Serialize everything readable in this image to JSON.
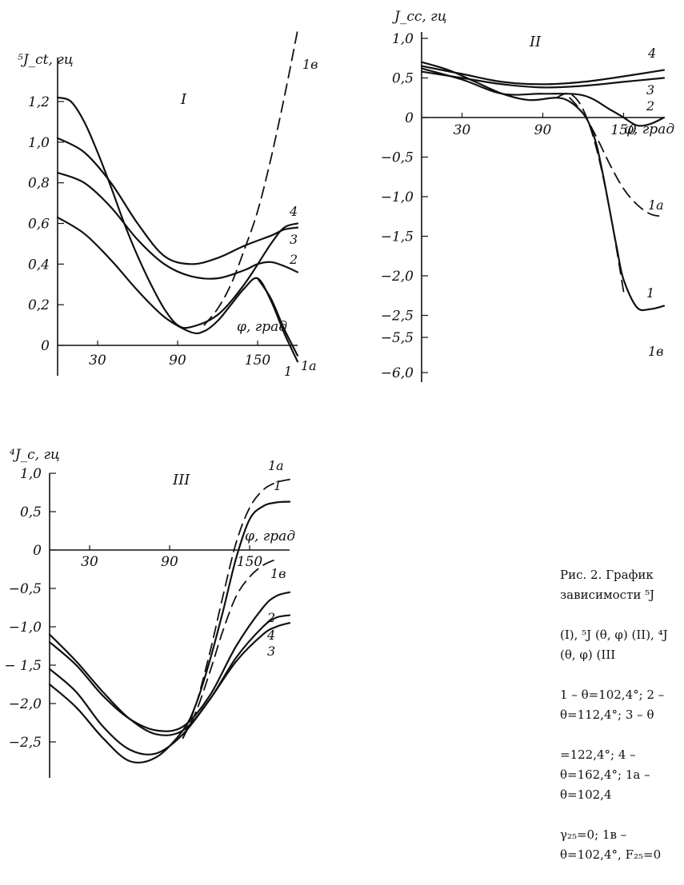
{
  "caption": {
    "lines": [
      "Рис. 2. График зависимости ⁵J",
      "(I), ⁵J (θ, φ) (II), ⁴J (θ, φ) (III",
      "1 – θ=102,4°; 2 – θ=112,4°; 3 – θ",
      "=122,4°; 4 – θ=162,4°; 1a – θ=102,4",
      "γ₂₅=0; 1в – θ=102,4°, F₂₅=0"
    ]
  },
  "chart_data": [
    {
      "type": "line",
      "panel": "I",
      "ylabel": "⁵J_ct, гц",
      "xlabel": "φ, град",
      "xticks": [
        30,
        90,
        150
      ],
      "yticks": [
        0,
        0.2,
        0.4,
        0.6,
        0.8,
        1.0,
        1.2
      ],
      "ytick_labels": [
        "0",
        "0,2",
        "0,4",
        "0,6",
        "0,8",
        "1,0",
        "1,2"
      ],
      "xlim": [
        0,
        180
      ],
      "ylim": [
        -0.05,
        1.45
      ],
      "series": [
        {
          "name": "1",
          "style": "solid",
          "x": [
            0,
            20,
            40,
            60,
            80,
            100,
            110,
            120,
            130,
            140,
            150,
            160,
            170,
            180
          ],
          "y": [
            0.63,
            0.55,
            0.42,
            0.27,
            0.14,
            0.065,
            0.07,
            0.12,
            0.2,
            0.28,
            0.33,
            0.22,
            0.06,
            -0.08
          ]
        },
        {
          "name": "1a",
          "style": "solid",
          "x": [
            150,
            160,
            170,
            180
          ],
          "y": [
            0.33,
            0.23,
            0.08,
            -0.05
          ]
        },
        {
          "name": "1в",
          "style": "dashed",
          "x": [
            110,
            120,
            130,
            140,
            150,
            160,
            170,
            180
          ],
          "y": [
            0.1,
            0.18,
            0.3,
            0.47,
            0.66,
            0.92,
            1.22,
            1.55
          ]
        },
        {
          "name": "2",
          "style": "solid",
          "x": [
            0,
            20,
            40,
            60,
            80,
            100,
            120,
            140,
            150,
            160,
            170,
            180
          ],
          "y": [
            0.85,
            0.8,
            0.68,
            0.52,
            0.4,
            0.34,
            0.33,
            0.37,
            0.4,
            0.41,
            0.39,
            0.36
          ]
        },
        {
          "name": "3",
          "style": "solid",
          "x": [
            0,
            20,
            40,
            60,
            80,
            100,
            120,
            140,
            160,
            170,
            180
          ],
          "y": [
            1.02,
            0.95,
            0.8,
            0.6,
            0.44,
            0.4,
            0.43,
            0.49,
            0.54,
            0.57,
            0.58
          ]
        },
        {
          "name": "4",
          "style": "solid",
          "x": [
            0,
            10,
            20,
            30,
            40,
            50,
            60,
            70,
            80,
            90,
            100,
            120,
            140,
            160,
            170,
            180
          ],
          "y": [
            1.22,
            1.2,
            1.1,
            0.95,
            0.78,
            0.6,
            0.44,
            0.3,
            0.18,
            0.1,
            0.09,
            0.15,
            0.3,
            0.5,
            0.58,
            0.6
          ]
        }
      ],
      "labels": {
        "1": "1",
        "1a": "1a",
        "1в": "1в",
        "2": "2",
        "3": "3",
        "4": "4"
      }
    },
    {
      "type": "line",
      "panel": "II",
      "ylabel": "J_cc, гц",
      "xlabel": "φ, град",
      "xticks": [
        30,
        90,
        150
      ],
      "yticks": [
        1.0,
        0.5,
        0,
        -0.5,
        -1.0,
        -1.5,
        -2.0,
        -2.5,
        -5.5,
        -6.0
      ],
      "ytick_labels": [
        "1,0",
        "0,5",
        "0",
        "−0,5",
        "−1,0",
        "−1,5",
        "−2,0",
        "−2,5",
        "−5,5",
        "−6,0"
      ],
      "xlim": [
        0,
        180
      ],
      "series": [
        {
          "name": "1",
          "style": "solid",
          "x": [
            0,
            20,
            40,
            60,
            80,
            100,
            110,
            120,
            125,
            130,
            135,
            140,
            145,
            150,
            160,
            170,
            180
          ],
          "y": [
            0.7,
            0.6,
            0.45,
            0.3,
            0.22,
            0.25,
            0.2,
            0.05,
            -0.1,
            -0.35,
            -0.75,
            -1.2,
            -1.65,
            -2.05,
            -2.4,
            -2.42,
            -2.38
          ]
        },
        {
          "name": "1a",
          "style": "dashed",
          "x": [
            110,
            120,
            130,
            140,
            150,
            160,
            170,
            180
          ],
          "y": [
            0.25,
            0.05,
            -0.25,
            -0.6,
            -0.9,
            -1.1,
            -1.22,
            -1.25
          ]
        },
        {
          "name": "1в",
          "style": "dashed",
          "x": [
            100,
            110,
            120,
            130,
            140,
            150
          ],
          "y": [
            0.25,
            0.3,
            0.1,
            -0.4,
            -1.2,
            -2.2
          ]
        },
        {
          "name": "2",
          "style": "solid",
          "x": [
            0,
            30,
            60,
            90,
            120,
            140,
            150,
            160,
            170,
            180
          ],
          "y": [
            0.62,
            0.48,
            0.3,
            0.3,
            0.28,
            0.1,
            0.0,
            -0.1,
            -0.08,
            0.0
          ]
        },
        {
          "name": "3",
          "style": "solid",
          "x": [
            0,
            30,
            60,
            90,
            120,
            150,
            180
          ],
          "y": [
            0.58,
            0.5,
            0.42,
            0.38,
            0.4,
            0.45,
            0.5
          ]
        },
        {
          "name": "4",
          "style": "solid",
          "x": [
            0,
            30,
            60,
            90,
            120,
            150,
            180
          ],
          "y": [
            0.65,
            0.55,
            0.45,
            0.42,
            0.45,
            0.52,
            0.6
          ]
        }
      ],
      "labels": {
        "1": "1",
        "1a": "1a",
        "1в": "1в",
        "2": "2",
        "3": "3",
        "4": "4"
      }
    },
    {
      "type": "line",
      "panel": "III",
      "ylabel": "⁴J_c, гц",
      "xlabel": "φ, град",
      "xticks": [
        30,
        90,
        150
      ],
      "yticks": [
        1.0,
        0.5,
        0,
        -0.5,
        -1.0,
        -1.5,
        -2.0,
        -2.5
      ],
      "ytick_labels": [
        "1,0",
        "0,5",
        "0",
        "−0,5",
        "−1,0",
        "− 1,5",
        "−2,0",
        "−2,5"
      ],
      "xlim": [
        0,
        180
      ],
      "ylim": [
        -2.8,
        1.1
      ],
      "series": [
        {
          "name": "1",
          "style": "solid",
          "x": [
            0,
            20,
            40,
            60,
            80,
            100,
            110,
            120,
            130,
            140,
            150,
            160,
            170,
            180
          ],
          "y": [
            -1.75,
            -2.05,
            -2.45,
            -2.75,
            -2.7,
            -2.35,
            -2.0,
            -1.45,
            -0.8,
            -0.1,
            0.4,
            0.57,
            0.62,
            0.63
          ]
        },
        {
          "name": "1a",
          "style": "dashed",
          "x": [
            100,
            110,
            120,
            130,
            140,
            150,
            160,
            170,
            180
          ],
          "y": [
            -2.45,
            -2.0,
            -1.35,
            -0.6,
            0.1,
            0.55,
            0.78,
            0.88,
            0.92
          ]
        },
        {
          "name": "1в",
          "style": "dashed",
          "x": [
            100,
            110,
            120,
            130,
            140,
            150,
            160,
            170
          ],
          "y": [
            -2.45,
            -2.1,
            -1.6,
            -1.05,
            -0.6,
            -0.35,
            -0.2,
            -0.12
          ]
        },
        {
          "name": "2",
          "style": "solid",
          "x": [
            0,
            20,
            40,
            60,
            80,
            100,
            120,
            140,
            160,
            170,
            180
          ],
          "y": [
            -1.2,
            -1.5,
            -1.9,
            -2.2,
            -2.35,
            -2.3,
            -1.9,
            -1.25,
            -0.75,
            -0.6,
            -0.55
          ]
        },
        {
          "name": "3",
          "style": "solid",
          "x": [
            0,
            20,
            40,
            60,
            80,
            100,
            120,
            140,
            160,
            170,
            180
          ],
          "y": [
            -1.55,
            -1.85,
            -2.3,
            -2.6,
            -2.65,
            -2.4,
            -1.95,
            -1.45,
            -1.1,
            -1.0,
            -0.95
          ]
        },
        {
          "name": "4",
          "style": "solid",
          "x": [
            0,
            20,
            40,
            60,
            80,
            100,
            120,
            140,
            160,
            170,
            180
          ],
          "y": [
            -1.1,
            -1.45,
            -1.85,
            -2.2,
            -2.4,
            -2.35,
            -1.95,
            -1.4,
            -1.0,
            -0.88,
            -0.85
          ]
        }
      ],
      "labels": {
        "1": "1",
        "1a": "1a",
        "1в": "1в",
        "2": "2",
        "3": "3",
        "4": "4"
      }
    }
  ],
  "roman": {
    "I": "I",
    "II": "II",
    "III": "III"
  }
}
